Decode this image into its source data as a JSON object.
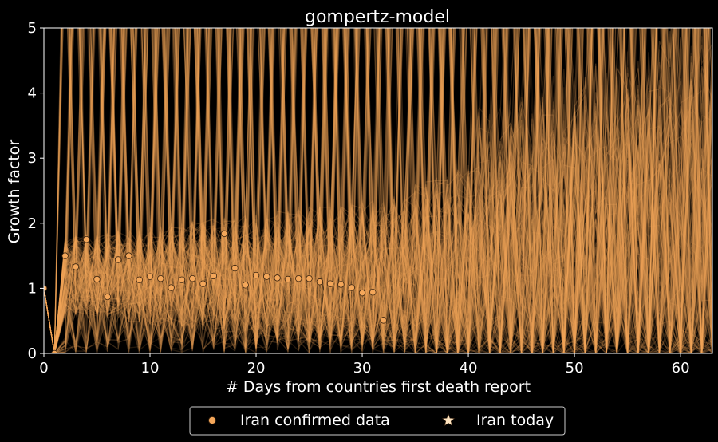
{
  "chart_data": {
    "type": "line",
    "title": "gompertz-model",
    "xlabel": "# Days from countries first death report",
    "ylabel": "Growth factor",
    "xlim": [
      0,
      63
    ],
    "ylim": [
      0,
      5
    ],
    "xticks": [
      0,
      10,
      20,
      30,
      40,
      50,
      60
    ],
    "yticks": [
      0,
      1,
      2,
      3,
      4,
      5
    ],
    "grid": false,
    "legend_position": "bottom-center",
    "colors": {
      "background": "#000000",
      "model_lines": "#f4a75a",
      "points_fill": "#f4a75a",
      "points_edge": "#3a2410",
      "star": "#fde3bf",
      "axes": "#ffffff"
    },
    "series": [
      {
        "name": "Iran confirmed data",
        "type": "scatter",
        "x": [
          0,
          1,
          2,
          3,
          4,
          5,
          6,
          7,
          8,
          9,
          10,
          11,
          12,
          13,
          14,
          15,
          16,
          17,
          18,
          19,
          20,
          21,
          22,
          23,
          24,
          25,
          26,
          27,
          28,
          29,
          30,
          31,
          32
        ],
        "y": [
          1.0,
          0.0,
          1.5,
          1.33,
          1.75,
          1.14,
          0.87,
          1.44,
          1.5,
          1.13,
          1.18,
          1.15,
          1.01,
          1.13,
          1.15,
          1.07,
          1.19,
          1.84,
          1.31,
          1.05,
          1.2,
          1.18,
          1.16,
          1.14,
          1.15,
          1.15,
          1.1,
          1.07,
          1.06,
          1.01,
          0.93,
          0.94,
          0.51
        ]
      },
      {
        "name": "Iran today",
        "type": "scatter",
        "marker": "star",
        "x": [],
        "y": []
      }
    ]
  },
  "legend": {
    "items": [
      "Iran confirmed data",
      "Iran today"
    ]
  }
}
